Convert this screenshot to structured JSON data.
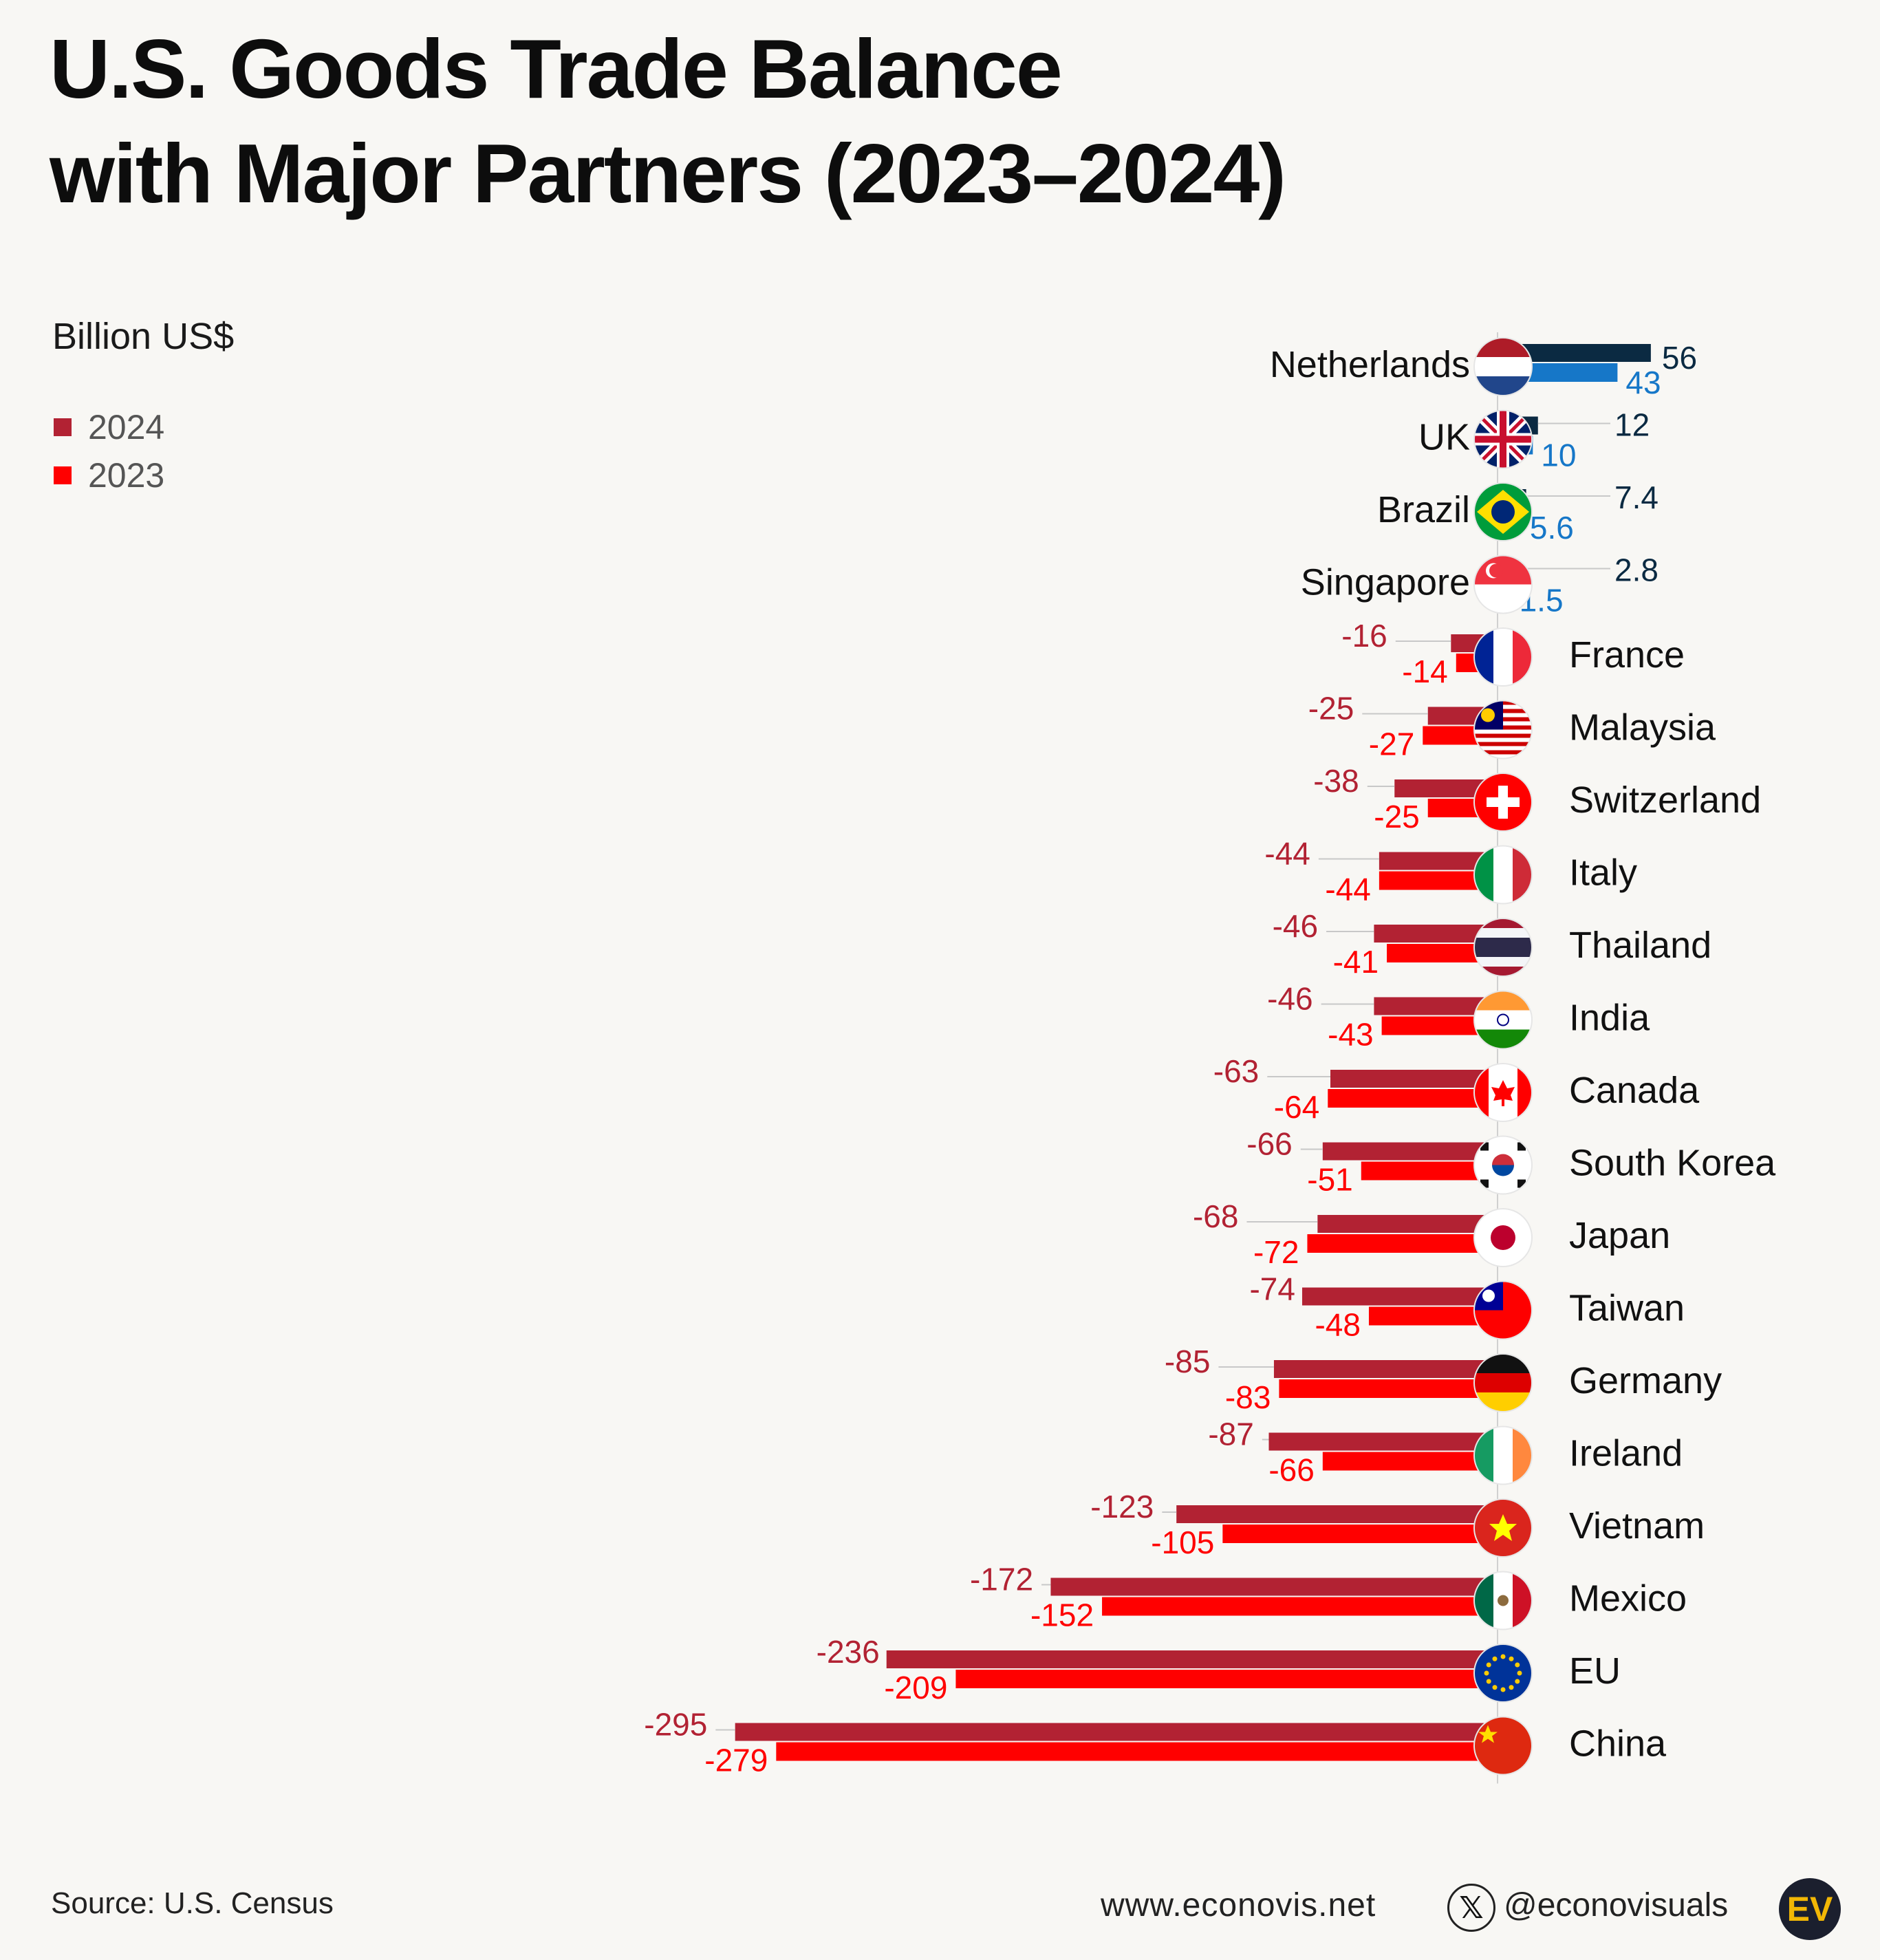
{
  "title_line1": "U.S. Goods Trade Balance",
  "title_line2": "with Major Partners (2023–2024)",
  "unit": "Billion US$",
  "legend": [
    {
      "label": "2024",
      "color": "#b22233"
    },
    {
      "label": "2023",
      "color": "#ff0000"
    }
  ],
  "colors": {
    "neg_2024": "#b22233",
    "neg_2023": "#ff0000",
    "pos_2024": "#0b2a42",
    "pos_2023": "#1677c8",
    "background": "#f8f7f4"
  },
  "chart_data": {
    "type": "bar",
    "orientation": "horizontal",
    "ylabel": "Billion US$",
    "categories": [
      "Netherlands",
      "UK",
      "Brazil",
      "Singapore",
      "France",
      "Malaysia",
      "Switzerland",
      "Italy",
      "Thailand",
      "India",
      "Canada",
      "South Korea",
      "Japan",
      "Taiwan",
      "Germany",
      "Ireland",
      "Vietnam",
      "Mexico",
      "EU",
      "China"
    ],
    "series": [
      {
        "name": "2024",
        "values": [
          56,
          12,
          7.4,
          2.8,
          -16,
          -25,
          -38,
          -44,
          -46,
          -46,
          -63,
          -66,
          -68,
          -74,
          -85,
          -87,
          -123,
          -172,
          -236,
          -295
        ]
      },
      {
        "name": "2023",
        "values": [
          43,
          10,
          5.6,
          1.5,
          -14,
          -27,
          -25,
          -44,
          -41,
          -43,
          -64,
          -51,
          -72,
          -48,
          -83,
          -66,
          -105,
          -152,
          -209,
          -279
        ]
      }
    ],
    "value_labels_2024": [
      "56",
      "12",
      "7.4",
      "2.8",
      "-16",
      "-25",
      "-38",
      "-44",
      "-46",
      "-46",
      "-63",
      "-66",
      "-68",
      "-74",
      "-85",
      "-87",
      "-123",
      "-172",
      "-236",
      "-295"
    ],
    "value_labels_2023": [
      "43",
      "10",
      "5.6",
      "1.5",
      "-14",
      "-27",
      "-25",
      "-44",
      "-41",
      "-43",
      "-64",
      "-51",
      "-72",
      "-48",
      "-83",
      "-66",
      "-105",
      "-152",
      "-209",
      "-279"
    ],
    "flag_icons": [
      "netherlands-flag-icon",
      "uk-flag-icon",
      "brazil-flag-icon",
      "singapore-flag-icon",
      "france-flag-icon",
      "malaysia-flag-icon",
      "switzerland-flag-icon",
      "italy-flag-icon",
      "thailand-flag-icon",
      "india-flag-icon",
      "canada-flag-icon",
      "south-korea-flag-icon",
      "japan-flag-icon",
      "taiwan-flag-icon",
      "germany-flag-icon",
      "ireland-flag-icon",
      "vietnam-flag-icon",
      "mexico-flag-icon",
      "eu-flag-icon",
      "china-flag-icon"
    ],
    "xlim": [
      -300,
      60
    ],
    "grid": false,
    "legend_position": "top-left"
  },
  "footer": {
    "source": "Source: U.S. Census",
    "website": "www.econovis.net",
    "x_icon_glyph": "𝕏",
    "handle": "@econovisuals",
    "logo_text": "EV"
  }
}
